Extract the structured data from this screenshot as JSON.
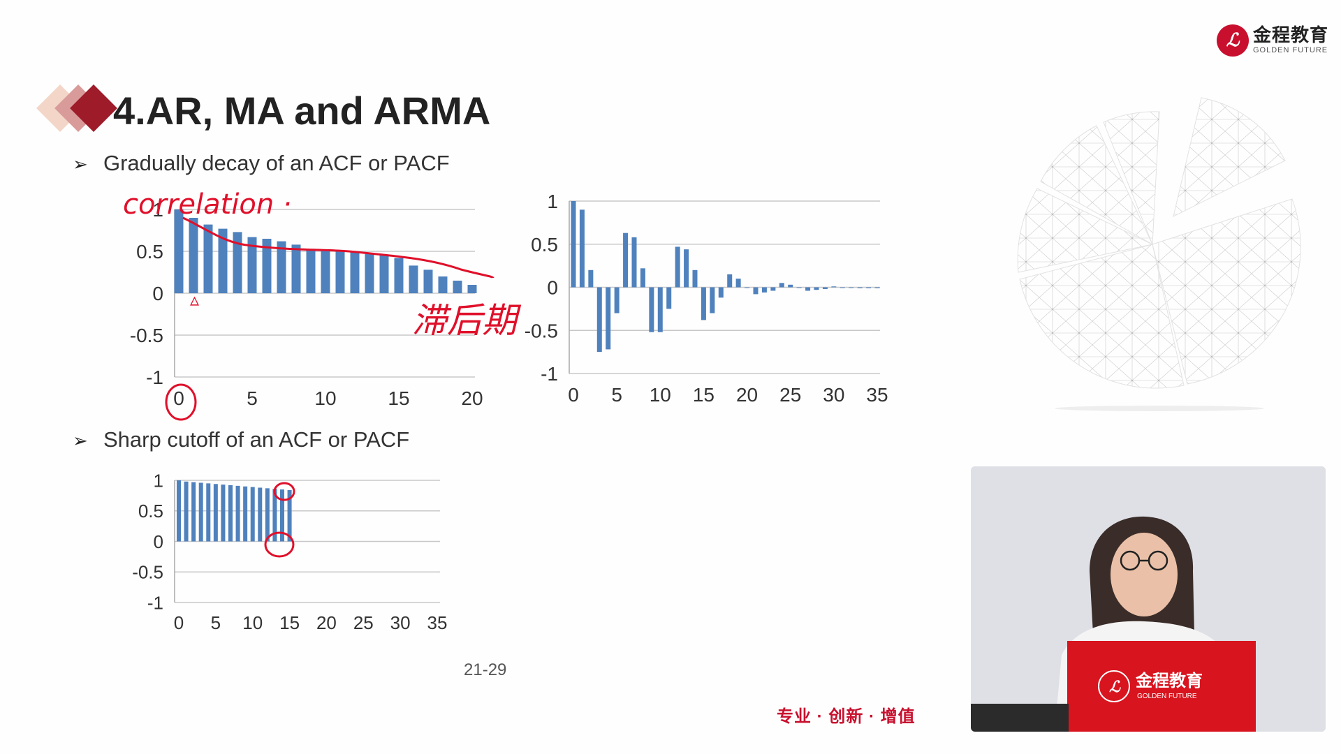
{
  "logo": {
    "cn": "金程教育",
    "en": "GOLDEN FUTURE",
    "mark": "ℒ",
    "icon": "golden-future-seal-icon"
  },
  "title": "4.AR, MA and ARMA",
  "bullets": [
    {
      "icon": "arrow-bullet-icon",
      "glyph": "➢",
      "text": "Gradually decay of an ACF or PACF"
    },
    {
      "icon": "arrow-bullet-icon",
      "glyph": "➢",
      "text": "Sharp cutoff of an ACF or PACF"
    }
  ],
  "charts": [
    {
      "id": "decay-acf",
      "type": "bar",
      "x_ticks": [
        "0",
        "5",
        "10",
        "15",
        "20"
      ],
      "y_ticks": [
        "-1",
        "-0.5",
        "0",
        "0.5",
        "1"
      ],
      "xlim": [
        0,
        20
      ],
      "ylim": [
        -1,
        1
      ],
      "grid": true,
      "color": "#4f81bd",
      "x": [
        0,
        1,
        2,
        3,
        4,
        5,
        6,
        7,
        8,
        9,
        10,
        11,
        12,
        13,
        14,
        15,
        16,
        17,
        18,
        19,
        20
      ],
      "values": [
        1.0,
        0.9,
        0.82,
        0.77,
        0.73,
        0.67,
        0.65,
        0.62,
        0.58,
        0.53,
        0.52,
        0.51,
        0.49,
        0.47,
        0.45,
        0.42,
        0.33,
        0.28,
        0.2,
        0.15,
        0.1
      ]
    },
    {
      "id": "decay-pacf",
      "type": "bar",
      "x_ticks": [
        "0",
        "5",
        "10",
        "15",
        "20",
        "25",
        "30",
        "35"
      ],
      "y_ticks": [
        "-1",
        "-0.5",
        "0",
        "0.5",
        "1"
      ],
      "xlim": [
        0,
        35
      ],
      "ylim": [
        -1,
        1
      ],
      "grid": true,
      "color": "#4f81bd",
      "x": [
        0,
        1,
        2,
        3,
        4,
        5,
        6,
        7,
        8,
        9,
        10,
        11,
        12,
        13,
        14,
        15,
        16,
        17,
        18,
        19,
        20,
        21,
        22,
        23,
        24,
        25,
        26,
        27,
        28,
        29,
        30,
        31,
        32,
        33,
        34,
        35
      ],
      "values": [
        1.0,
        0.9,
        0.2,
        -0.75,
        -0.72,
        -0.3,
        0.63,
        0.58,
        0.22,
        -0.52,
        -0.52,
        -0.25,
        0.47,
        0.44,
        0.2,
        -0.38,
        -0.3,
        -0.12,
        0.15,
        0.1,
        0.0,
        -0.08,
        -0.06,
        -0.04,
        0.05,
        0.03,
        0.0,
        -0.04,
        -0.03,
        -0.02,
        0.01,
        0.0,
        0.0,
        -0.01,
        -0.01,
        -0.01
      ]
    },
    {
      "id": "cutoff-acf",
      "type": "bar",
      "x_ticks": [
        "0",
        "5",
        "10",
        "15",
        "20",
        "25",
        "30",
        "35"
      ],
      "y_ticks": [
        "-1",
        "-0.5",
        "0",
        "0.5",
        "1"
      ],
      "xlim": [
        0,
        35
      ],
      "ylim": [
        -1,
        1
      ],
      "grid": true,
      "color": "#4f81bd",
      "x": [
        0,
        1,
        2,
        3,
        4,
        5,
        6,
        7,
        8,
        9,
        10,
        11,
        12,
        13,
        14,
        15
      ],
      "values": [
        1.0,
        0.98,
        0.97,
        0.96,
        0.95,
        0.94,
        0.93,
        0.92,
        0.91,
        0.9,
        0.89,
        0.88,
        0.87,
        0.86,
        0.85,
        0.84
      ]
    }
  ],
  "page_number": "21-29",
  "slogan": "专业 · 创新 · 增值",
  "annotations": {
    "correlation": "correlation ·",
    "lag": "滞后期",
    "triangle": "▵",
    "ink_color": "#e0102a"
  },
  "video": {
    "laptop_logo_cn": "金程教育",
    "laptop_logo_en": "GOLDEN FUTURE",
    "laptop_color": "#d8141f"
  }
}
